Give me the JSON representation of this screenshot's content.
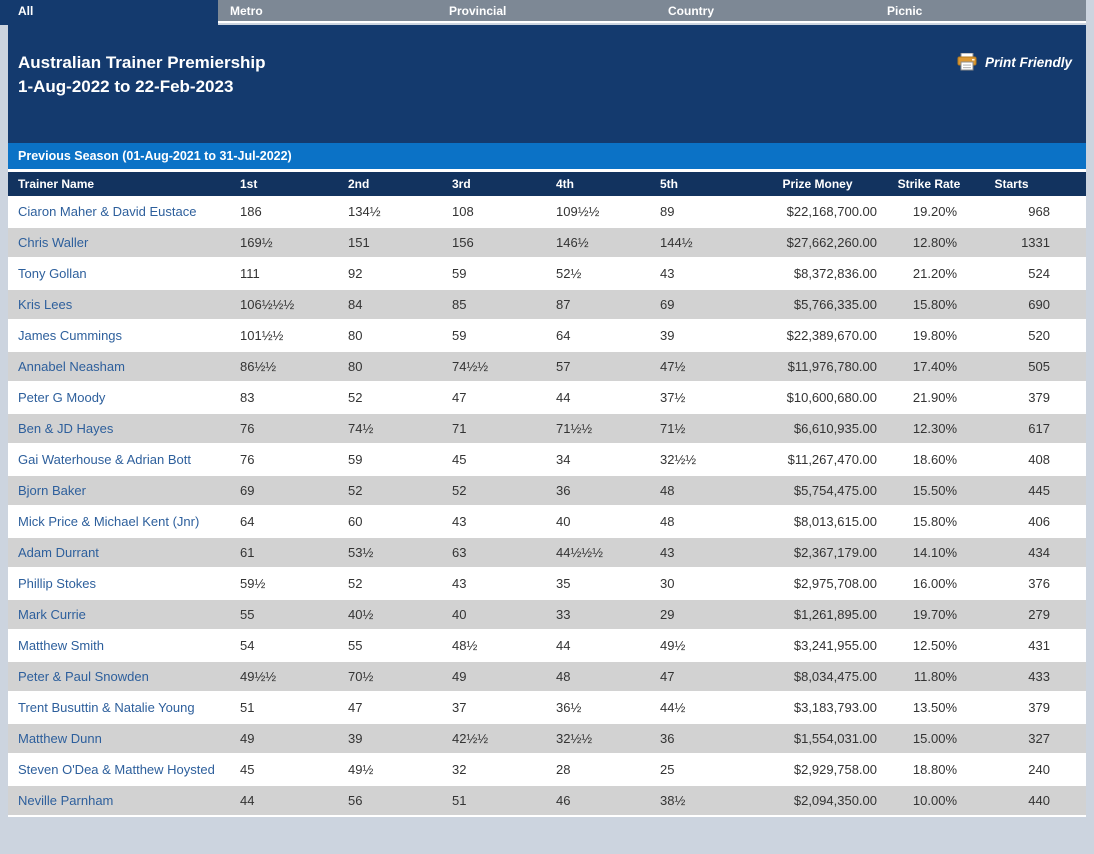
{
  "tabs": {
    "items": [
      {
        "label": "All",
        "active": true
      },
      {
        "label": "Metro",
        "active": false
      },
      {
        "label": "Provincial",
        "active": false
      },
      {
        "label": "Country",
        "active": false
      },
      {
        "label": "Picnic",
        "active": false
      }
    ]
  },
  "header": {
    "title_line1": "Australian Trainer Premiership",
    "title_line2": "1-Aug-2022 to 22-Feb-2023",
    "print_label": "Print Friendly"
  },
  "season_bar": {
    "label": "Previous Season (01-Aug-2021 to 31-Jul-2022)"
  },
  "table": {
    "columns": [
      "Trainer Name",
      "1st",
      "2nd",
      "3rd",
      "4th",
      "5th",
      "Prize Money",
      "Strike Rate",
      "Starts"
    ],
    "rows": [
      [
        "Ciaron Maher & David Eustace",
        "186",
        "134½",
        "108",
        "109½½",
        "89",
        "$22,168,700.00",
        "19.20%",
        "968"
      ],
      [
        "Chris Waller",
        "169½",
        "151",
        "156",
        "146½",
        "144½",
        "$27,662,260.00",
        "12.80%",
        "1331"
      ],
      [
        "Tony Gollan",
        "111",
        "92",
        "59",
        "52½",
        "43",
        "$8,372,836.00",
        "21.20%",
        "524"
      ],
      [
        "Kris Lees",
        "106½½½",
        "84",
        "85",
        "87",
        "69",
        "$5,766,335.00",
        "15.80%",
        "690"
      ],
      [
        "James Cummings",
        "101½½",
        "80",
        "59",
        "64",
        "39",
        "$22,389,670.00",
        "19.80%",
        "520"
      ],
      [
        "Annabel Neasham",
        "86½½",
        "80",
        "74½½",
        "57",
        "47½",
        "$11,976,780.00",
        "17.40%",
        "505"
      ],
      [
        "Peter G Moody",
        "83",
        "52",
        "47",
        "44",
        "37½",
        "$10,600,680.00",
        "21.90%",
        "379"
      ],
      [
        "Ben & JD Hayes",
        "76",
        "74½",
        "71",
        "71½½",
        "71½",
        "$6,610,935.00",
        "12.30%",
        "617"
      ],
      [
        "Gai Waterhouse & Adrian Bott",
        "76",
        "59",
        "45",
        "34",
        "32½½",
        "$11,267,470.00",
        "18.60%",
        "408"
      ],
      [
        "Bjorn Baker",
        "69",
        "52",
        "52",
        "36",
        "48",
        "$5,754,475.00",
        "15.50%",
        "445"
      ],
      [
        "Mick Price & Michael Kent (Jnr)",
        "64",
        "60",
        "43",
        "40",
        "48",
        "$8,013,615.00",
        "15.80%",
        "406"
      ],
      [
        "Adam Durrant",
        "61",
        "53½",
        "63",
        "44½½½",
        "43",
        "$2,367,179.00",
        "14.10%",
        "434"
      ],
      [
        "Phillip Stokes",
        "59½",
        "52",
        "43",
        "35",
        "30",
        "$2,975,708.00",
        "16.00%",
        "376"
      ],
      [
        "Mark Currie",
        "55",
        "40½",
        "40",
        "33",
        "29",
        "$1,261,895.00",
        "19.70%",
        "279"
      ],
      [
        "Matthew Smith",
        "54",
        "55",
        "48½",
        "44",
        "49½",
        "$3,241,955.00",
        "12.50%",
        "431"
      ],
      [
        "Peter & Paul Snowden",
        "49½½",
        "70½",
        "49",
        "48",
        "47",
        "$8,034,475.00",
        "11.80%",
        "433"
      ],
      [
        "Trent Busuttin & Natalie Young",
        "51",
        "47",
        "37",
        "36½",
        "44½",
        "$3,183,793.00",
        "13.50%",
        "379"
      ],
      [
        "Matthew Dunn",
        "49",
        "39",
        "42½½",
        "32½½",
        "36",
        "$1,554,031.00",
        "15.00%",
        "327"
      ],
      [
        "Steven O'Dea & Matthew Hoysted",
        "45",
        "49½",
        "32",
        "28",
        "25",
        "$2,929,758.00",
        "18.80%",
        "240"
      ],
      [
        "Neville Parnham",
        "44",
        "56",
        "51",
        "46",
        "38½",
        "$2,094,350.00",
        "10.00%",
        "440"
      ]
    ]
  },
  "colors": {
    "navy": "#143a6e",
    "table_header_navy": "#12335f",
    "bright_blue": "#0b72c6",
    "tab_gray": "#7d8895",
    "row_alt_gray": "#d2d2d2",
    "link_blue": "#2d5f9c",
    "page_border": "#ccd4df",
    "print_icon_orange": "#dd9933"
  }
}
